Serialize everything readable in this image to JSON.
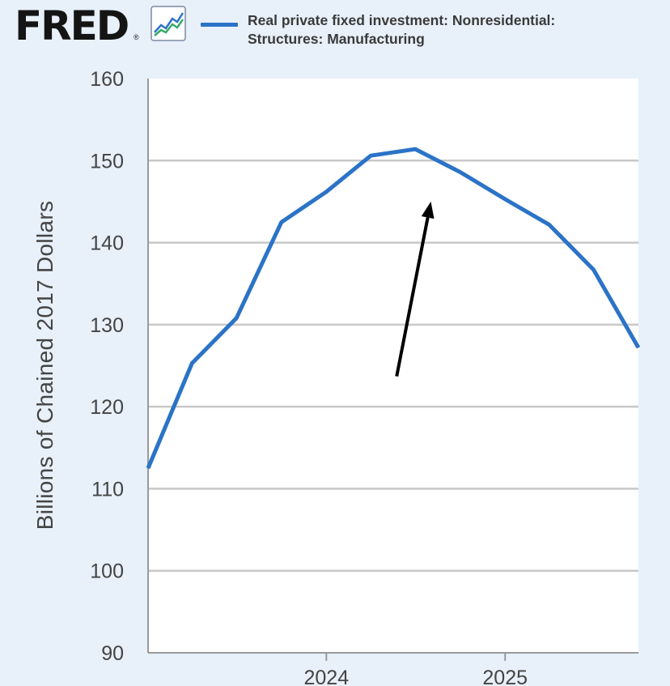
{
  "brand": {
    "name": "FRED",
    "mark": "®",
    "icon": "line-chart-icon"
  },
  "colors": {
    "series": "#2b73c7",
    "background": "#e8f0fa",
    "plot_bg": "#ffffff",
    "grid": "#c8c8c8",
    "arrow": "#000000"
  },
  "chart_data": {
    "type": "line",
    "title": "",
    "xlabel": "",
    "ylabel": "Billions of Chained 2017 Dollars",
    "ylim": [
      90,
      160
    ],
    "yticks": [
      "160",
      "150",
      "140",
      "130",
      "120",
      "110",
      "100",
      "90"
    ],
    "xlim": [
      "2023-01-01",
      "2025-10-01"
    ],
    "xticks": [
      {
        "date": "2024-01-01",
        "label": "2024"
      },
      {
        "date": "2025-01-01",
        "label": "2025"
      }
    ],
    "grid": true,
    "legend_position": "top",
    "series": [
      {
        "name": "Real private fixed investment: Nonresidential: Structures: Manufacturing",
        "name_lines": [
          "Real private fixed investment: Nonresidential:",
          "Structures: Manufacturing"
        ],
        "x": [
          "2023-01-01",
          "2023-04-01",
          "2023-07-01",
          "2023-10-01",
          "2024-01-01",
          "2024-04-01",
          "2024-07-01",
          "2024-10-01",
          "2025-01-01",
          "2025-04-01",
          "2025-07-01",
          "2025-10-01"
        ],
        "y": [
          112.5,
          125.3,
          130.8,
          142.5,
          146.2,
          150.6,
          151.4,
          148.6,
          145.3,
          142.2,
          136.7,
          127.2
        ]
      }
    ],
    "annotations": [
      {
        "type": "arrow",
        "from": {
          "x": "2024-05-24",
          "y": 123.7
        },
        "to": {
          "x": "2024-08-02",
          "y": 145.0
        }
      }
    ]
  }
}
